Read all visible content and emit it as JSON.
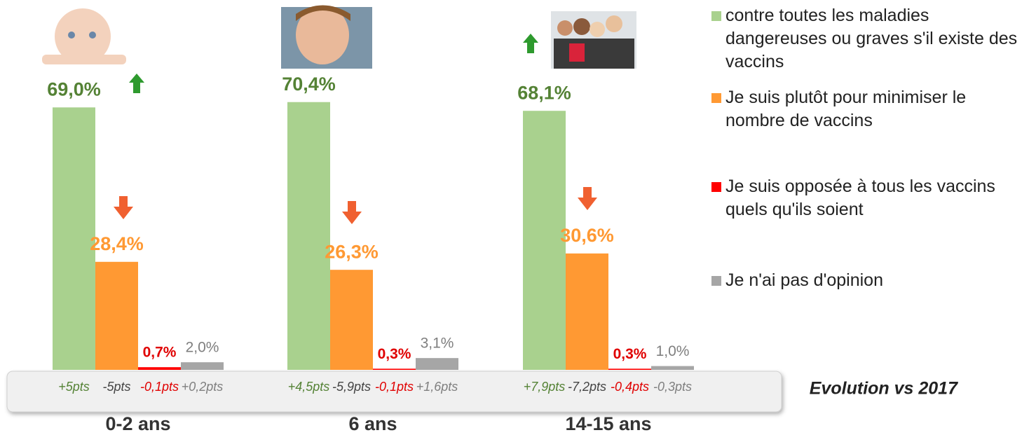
{
  "chart_data": {
    "type": "bar",
    "categories": [
      "0-2 ans",
      "6 ans",
      "14-15 ans"
    ],
    "series": [
      {
        "name": "contre toutes les maladies dangereuses ou graves s'il existe des vaccins",
        "color": "#a9d18e",
        "label_color": "#548235",
        "values": [
          69.0,
          70.4,
          68.1
        ],
        "value_labels": [
          "69,0%",
          "70,4%",
          "68,1%"
        ],
        "evolution": [
          "+5pts",
          "+4,5pts",
          "+7,9pts"
        ]
      },
      {
        "name": "Je suis plutôt pour minimiser le nombre de vaccins",
        "color": "#ff9933",
        "label_color": "#ff9933",
        "values": [
          28.4,
          26.3,
          30.6
        ],
        "value_labels": [
          "28,4%",
          "26,3%",
          "30,6%"
        ],
        "evolution": [
          "-5pts",
          "-5,9pts",
          "-7,2pts"
        ]
      },
      {
        "name": "Je suis opposée à tous les vaccins quels qu'ils soient",
        "color": "#ff0000",
        "label_color": "#e00000",
        "values": [
          0.7,
          0.3,
          0.3
        ],
        "value_labels": [
          "0,7%",
          "0,3%",
          "0,3%"
        ],
        "evolution": [
          "-0,1pts",
          "-0,1pts",
          "-0,4pts"
        ]
      },
      {
        "name": "Je n'ai pas d'opinion",
        "color": "#a6a6a6",
        "label_color": "#7f7f7f",
        "values": [
          2.0,
          3.1,
          1.0
        ],
        "value_labels": [
          "2,0%",
          "3,1%",
          "1,0%"
        ],
        "evolution": [
          "+0,2pts",
          "+1,6pts",
          "-0,3pts"
        ]
      }
    ],
    "evolution_title": "Evolution vs 2017"
  }
}
